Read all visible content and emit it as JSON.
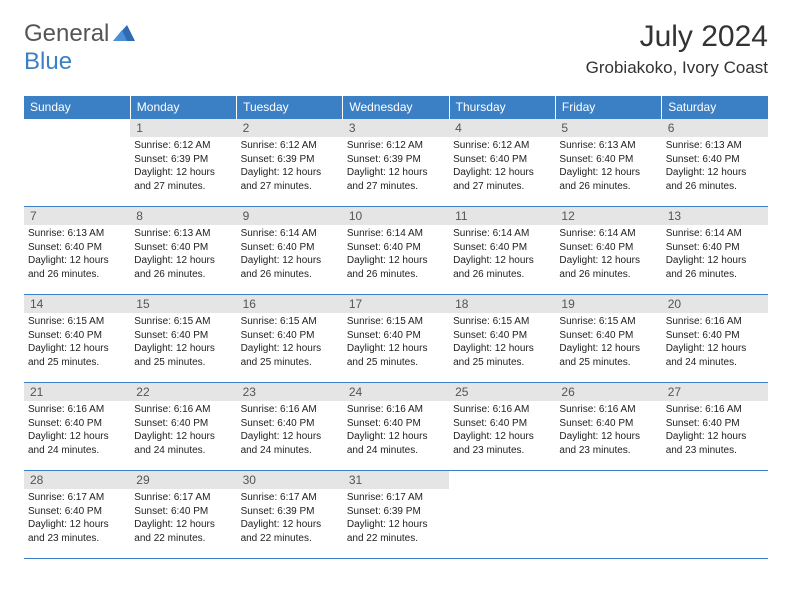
{
  "logo": {
    "line1": "General",
    "line2": "Blue"
  },
  "title": "July 2024",
  "location": "Grobiakoko, Ivory Coast",
  "colors": {
    "brand_blue": "#3b7fc4",
    "header_bg": "#3b7fc4",
    "header_text": "#ffffff",
    "daynum_bg": "#e5e5e5",
    "daynum_text": "#555555",
    "body_text": "#222222",
    "border": "#3b7fc4",
    "page_bg": "#ffffff"
  },
  "weekdays": [
    "Sunday",
    "Monday",
    "Tuesday",
    "Wednesday",
    "Thursday",
    "Friday",
    "Saturday"
  ],
  "weeks": [
    [
      {
        "n": "",
        "sr": "",
        "ss": "",
        "dl": ""
      },
      {
        "n": "1",
        "sr": "Sunrise: 6:12 AM",
        "ss": "Sunset: 6:39 PM",
        "dl": "Daylight: 12 hours and 27 minutes."
      },
      {
        "n": "2",
        "sr": "Sunrise: 6:12 AM",
        "ss": "Sunset: 6:39 PM",
        "dl": "Daylight: 12 hours and 27 minutes."
      },
      {
        "n": "3",
        "sr": "Sunrise: 6:12 AM",
        "ss": "Sunset: 6:39 PM",
        "dl": "Daylight: 12 hours and 27 minutes."
      },
      {
        "n": "4",
        "sr": "Sunrise: 6:12 AM",
        "ss": "Sunset: 6:40 PM",
        "dl": "Daylight: 12 hours and 27 minutes."
      },
      {
        "n": "5",
        "sr": "Sunrise: 6:13 AM",
        "ss": "Sunset: 6:40 PM",
        "dl": "Daylight: 12 hours and 26 minutes."
      },
      {
        "n": "6",
        "sr": "Sunrise: 6:13 AM",
        "ss": "Sunset: 6:40 PM",
        "dl": "Daylight: 12 hours and 26 minutes."
      }
    ],
    [
      {
        "n": "7",
        "sr": "Sunrise: 6:13 AM",
        "ss": "Sunset: 6:40 PM",
        "dl": "Daylight: 12 hours and 26 minutes."
      },
      {
        "n": "8",
        "sr": "Sunrise: 6:13 AM",
        "ss": "Sunset: 6:40 PM",
        "dl": "Daylight: 12 hours and 26 minutes."
      },
      {
        "n": "9",
        "sr": "Sunrise: 6:14 AM",
        "ss": "Sunset: 6:40 PM",
        "dl": "Daylight: 12 hours and 26 minutes."
      },
      {
        "n": "10",
        "sr": "Sunrise: 6:14 AM",
        "ss": "Sunset: 6:40 PM",
        "dl": "Daylight: 12 hours and 26 minutes."
      },
      {
        "n": "11",
        "sr": "Sunrise: 6:14 AM",
        "ss": "Sunset: 6:40 PM",
        "dl": "Daylight: 12 hours and 26 minutes."
      },
      {
        "n": "12",
        "sr": "Sunrise: 6:14 AM",
        "ss": "Sunset: 6:40 PM",
        "dl": "Daylight: 12 hours and 26 minutes."
      },
      {
        "n": "13",
        "sr": "Sunrise: 6:14 AM",
        "ss": "Sunset: 6:40 PM",
        "dl": "Daylight: 12 hours and 26 minutes."
      }
    ],
    [
      {
        "n": "14",
        "sr": "Sunrise: 6:15 AM",
        "ss": "Sunset: 6:40 PM",
        "dl": "Daylight: 12 hours and 25 minutes."
      },
      {
        "n": "15",
        "sr": "Sunrise: 6:15 AM",
        "ss": "Sunset: 6:40 PM",
        "dl": "Daylight: 12 hours and 25 minutes."
      },
      {
        "n": "16",
        "sr": "Sunrise: 6:15 AM",
        "ss": "Sunset: 6:40 PM",
        "dl": "Daylight: 12 hours and 25 minutes."
      },
      {
        "n": "17",
        "sr": "Sunrise: 6:15 AM",
        "ss": "Sunset: 6:40 PM",
        "dl": "Daylight: 12 hours and 25 minutes."
      },
      {
        "n": "18",
        "sr": "Sunrise: 6:15 AM",
        "ss": "Sunset: 6:40 PM",
        "dl": "Daylight: 12 hours and 25 minutes."
      },
      {
        "n": "19",
        "sr": "Sunrise: 6:15 AM",
        "ss": "Sunset: 6:40 PM",
        "dl": "Daylight: 12 hours and 25 minutes."
      },
      {
        "n": "20",
        "sr": "Sunrise: 6:16 AM",
        "ss": "Sunset: 6:40 PM",
        "dl": "Daylight: 12 hours and 24 minutes."
      }
    ],
    [
      {
        "n": "21",
        "sr": "Sunrise: 6:16 AM",
        "ss": "Sunset: 6:40 PM",
        "dl": "Daylight: 12 hours and 24 minutes."
      },
      {
        "n": "22",
        "sr": "Sunrise: 6:16 AM",
        "ss": "Sunset: 6:40 PM",
        "dl": "Daylight: 12 hours and 24 minutes."
      },
      {
        "n": "23",
        "sr": "Sunrise: 6:16 AM",
        "ss": "Sunset: 6:40 PM",
        "dl": "Daylight: 12 hours and 24 minutes."
      },
      {
        "n": "24",
        "sr": "Sunrise: 6:16 AM",
        "ss": "Sunset: 6:40 PM",
        "dl": "Daylight: 12 hours and 24 minutes."
      },
      {
        "n": "25",
        "sr": "Sunrise: 6:16 AM",
        "ss": "Sunset: 6:40 PM",
        "dl": "Daylight: 12 hours and 23 minutes."
      },
      {
        "n": "26",
        "sr": "Sunrise: 6:16 AM",
        "ss": "Sunset: 6:40 PM",
        "dl": "Daylight: 12 hours and 23 minutes."
      },
      {
        "n": "27",
        "sr": "Sunrise: 6:16 AM",
        "ss": "Sunset: 6:40 PM",
        "dl": "Daylight: 12 hours and 23 minutes."
      }
    ],
    [
      {
        "n": "28",
        "sr": "Sunrise: 6:17 AM",
        "ss": "Sunset: 6:40 PM",
        "dl": "Daylight: 12 hours and 23 minutes."
      },
      {
        "n": "29",
        "sr": "Sunrise: 6:17 AM",
        "ss": "Sunset: 6:40 PM",
        "dl": "Daylight: 12 hours and 22 minutes."
      },
      {
        "n": "30",
        "sr": "Sunrise: 6:17 AM",
        "ss": "Sunset: 6:39 PM",
        "dl": "Daylight: 12 hours and 22 minutes."
      },
      {
        "n": "31",
        "sr": "Sunrise: 6:17 AM",
        "ss": "Sunset: 6:39 PM",
        "dl": "Daylight: 12 hours and 22 minutes."
      },
      {
        "n": "",
        "sr": "",
        "ss": "",
        "dl": ""
      },
      {
        "n": "",
        "sr": "",
        "ss": "",
        "dl": ""
      },
      {
        "n": "",
        "sr": "",
        "ss": "",
        "dl": ""
      }
    ]
  ]
}
